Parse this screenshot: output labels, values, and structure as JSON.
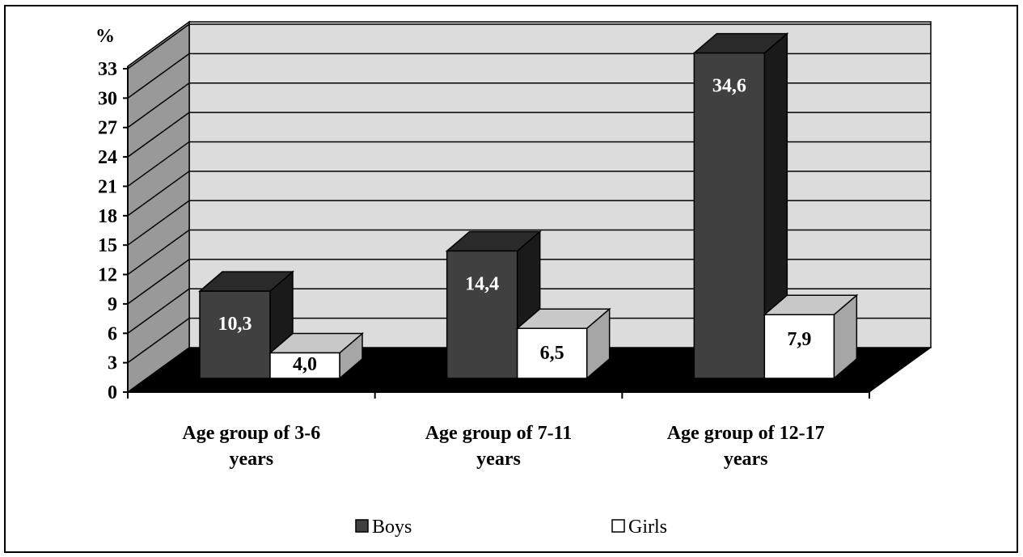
{
  "chart_data": {
    "type": "bar",
    "title": "",
    "ylabel": "%",
    "xlabel": "",
    "ylim": [
      0,
      33
    ],
    "yticks": [
      "0",
      "3",
      "6",
      "9",
      "12",
      "15",
      "18",
      "21",
      "24",
      "27",
      "30",
      "33"
    ],
    "categories": [
      [
        "Age group of 3-6",
        "years"
      ],
      [
        "Age group of 7-11",
        "years"
      ],
      [
        "Age group of 12-17",
        "years"
      ]
    ],
    "series": [
      {
        "name": "Boys",
        "values": [
          10.3,
          14.4,
          34.6
        ],
        "labels": [
          "10,3",
          "14,4",
          "34,6"
        ],
        "color": "#404040",
        "label_color": "#ffffff"
      },
      {
        "name": "Girls",
        "values": [
          4.0,
          6.5,
          7.9
        ],
        "labels": [
          "4,0",
          "6,5",
          "7,9"
        ],
        "color": "#ffffff",
        "label_color": "#000000"
      }
    ],
    "legend": {
      "position": "bottom"
    },
    "grid": true,
    "style": "3d-clustered-column",
    "colors": {
      "back_wall": "#dcdcdc",
      "side_wall": "#999999",
      "floor": "#000000",
      "gridline": "#000000"
    }
  }
}
